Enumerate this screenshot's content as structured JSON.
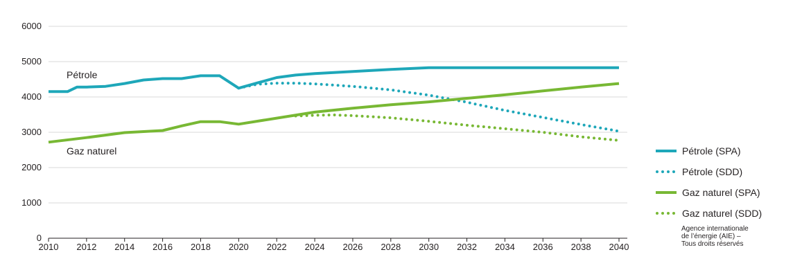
{
  "chart_data": {
    "type": "line",
    "title": "",
    "xlabel": "",
    "ylabel": "",
    "xlim": [
      2010,
      2040
    ],
    "ylim": [
      0,
      6000
    ],
    "x_ticks": [
      "2010",
      "2012",
      "2014",
      "2016",
      "2018",
      "2020",
      "2022",
      "2024",
      "2026",
      "2028",
      "2030",
      "2032",
      "2034",
      "2036",
      "2038",
      "2040"
    ],
    "y_ticks": [
      "0",
      "1000",
      "2000",
      "3000",
      "4000",
      "5000",
      "6000"
    ],
    "grid": "horizontal",
    "legend_position": "right",
    "line_labels": {
      "oil": "Pétrole",
      "gas": "Gaz naturel"
    },
    "series": [
      {
        "name": "Pétrole (SPA)",
        "color": "#1ea7b9",
        "style": "solid",
        "x": [
          2010,
          2011,
          2011.5,
          2012,
          2013,
          2014,
          2015,
          2016,
          2017,
          2018,
          2019,
          2020,
          2021,
          2022,
          2023,
          2024,
          2026,
          2028,
          2030,
          2040
        ],
        "y": [
          4150,
          4150,
          4280,
          4280,
          4300,
          4380,
          4480,
          4520,
          4520,
          4600,
          4600,
          4250,
          4400,
          4550,
          4620,
          4660,
          4720,
          4780,
          4830,
          4830
        ]
      },
      {
        "name": "Pétrole (SDD)",
        "color": "#1ea7b9",
        "style": "dotted",
        "x": [
          2020,
          2021,
          2022,
          2023,
          2024,
          2026,
          2028,
          2030,
          2032,
          2034,
          2036,
          2038,
          2040
        ],
        "y": [
          4250,
          4360,
          4390,
          4390,
          4370,
          4300,
          4200,
          4050,
          3850,
          3620,
          3420,
          3220,
          3030
        ]
      },
      {
        "name": "Gaz naturel (SPA)",
        "color": "#78b834",
        "style": "solid",
        "x": [
          2010,
          2012,
          2014,
          2016,
          2017,
          2018,
          2019,
          2020,
          2022,
          2024,
          2026,
          2028,
          2030,
          2032,
          2034,
          2036,
          2038,
          2040
        ],
        "y": [
          2720,
          2850,
          2990,
          3050,
          3180,
          3300,
          3300,
          3230,
          3400,
          3570,
          3680,
          3780,
          3860,
          3960,
          4060,
          4170,
          4280,
          4380
        ]
      },
      {
        "name": "Gaz naturel (SDD)",
        "color": "#78b834",
        "style": "dotted",
        "x": [
          2023,
          2024,
          2025,
          2026,
          2028,
          2030,
          2032,
          2034,
          2036,
          2038,
          2040
        ],
        "y": [
          3460,
          3480,
          3490,
          3470,
          3410,
          3310,
          3200,
          3100,
          3000,
          2870,
          2770
        ]
      }
    ],
    "source": [
      "Agence internationale",
      "de l’énergie (AIE) –",
      "Tous droits réservés"
    ]
  }
}
